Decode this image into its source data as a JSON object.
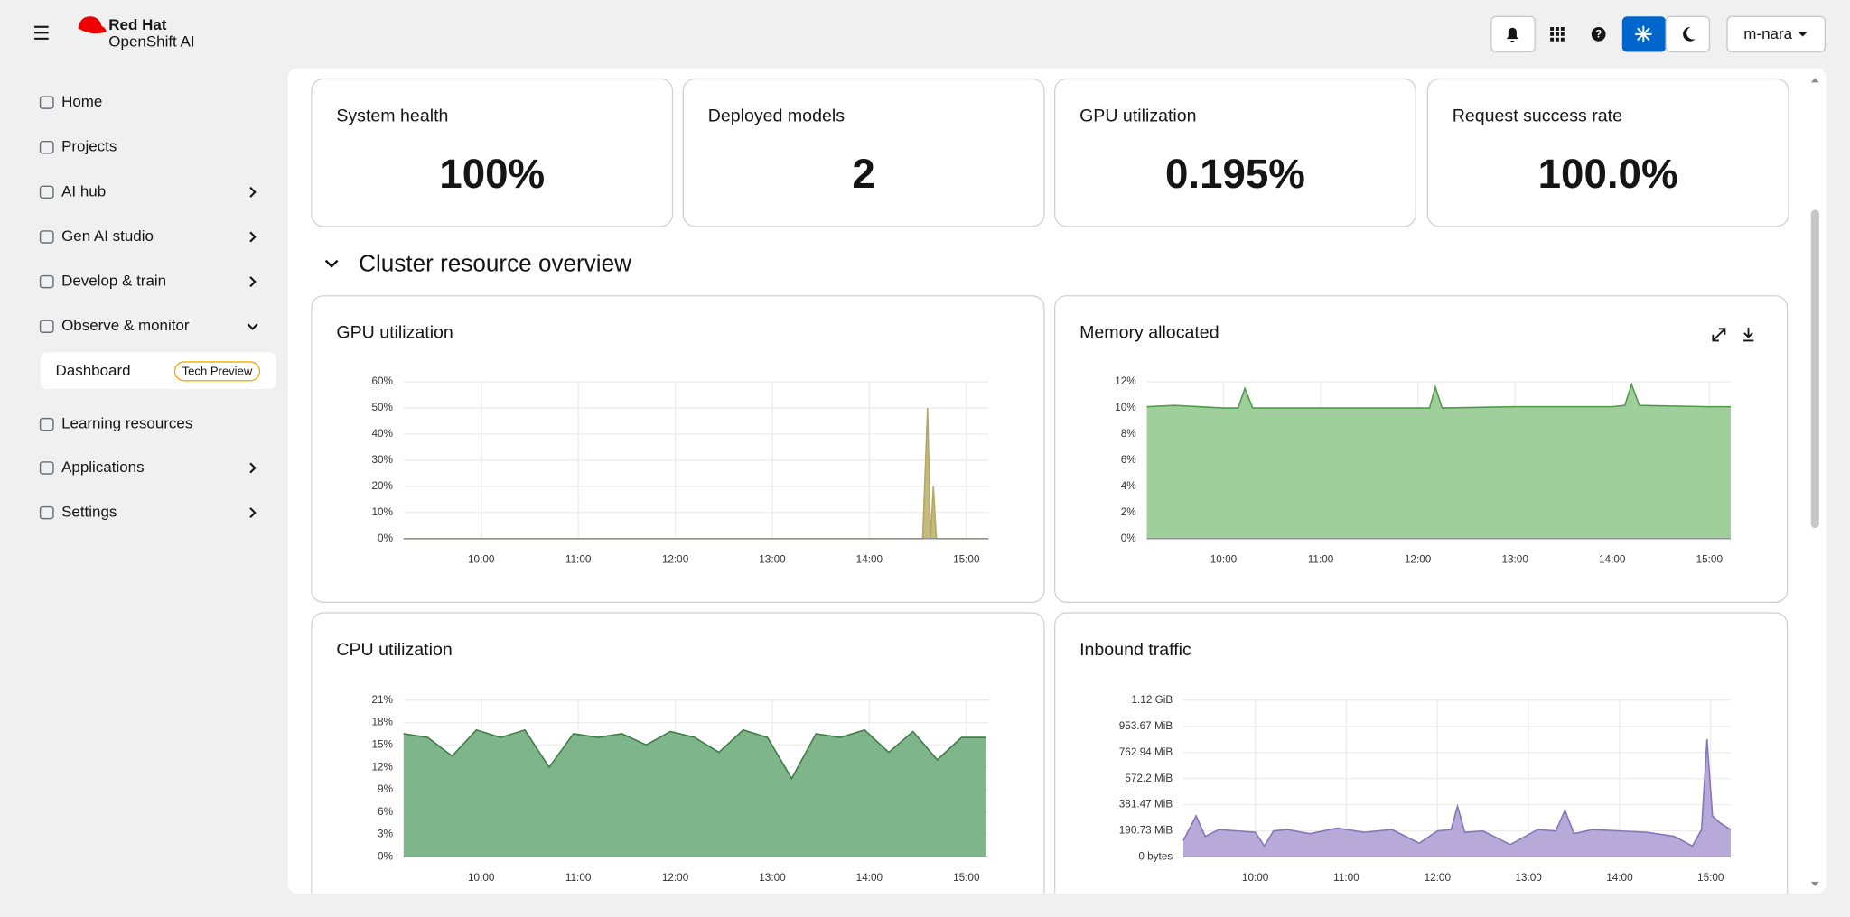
{
  "header": {
    "brand": "Red Hat",
    "product": "OpenShift AI",
    "user": "m-nara"
  },
  "nav": {
    "items": [
      "Home",
      "Projects",
      "AI hub",
      "Gen AI studio",
      "Develop & train",
      "Observe & monitor"
    ],
    "sub_item": "Dashboard",
    "badge": "Tech Preview",
    "items_after": [
      "Learning resources",
      "Applications",
      "Settings"
    ]
  },
  "stats": [
    {
      "title": "System health",
      "value": "100%"
    },
    {
      "title": "Deployed models",
      "value": "2"
    },
    {
      "title": "GPU utilization",
      "value": "0.195%"
    },
    {
      "title": "Request success rate",
      "value": "100.0%"
    }
  ],
  "section_title": "Cluster resource overview",
  "chart_data": [
    {
      "type": "area",
      "title": "GPU utilization",
      "color": "#c5bb7e",
      "line_color": "#b3a862",
      "x": [
        9.2,
        14.55,
        14.6,
        14.63,
        14.66,
        14.69,
        15.23
      ],
      "values": [
        0,
        0,
        50,
        0,
        20,
        0,
        0
      ],
      "xlim": [
        9.2,
        15.23
      ],
      "xticks": [
        {
          "value": 10,
          "label": "10:00"
        },
        {
          "value": 11,
          "label": "11:00"
        },
        {
          "value": 12,
          "label": "12:00"
        },
        {
          "value": 13,
          "label": "13:00"
        },
        {
          "value": 14,
          "label": "14:00"
        },
        {
          "value": 15,
          "label": "15:00"
        }
      ],
      "ylim": [
        0,
        60
      ],
      "yticks": [
        {
          "value": 0,
          "label": "0%"
        },
        {
          "value": 10,
          "label": "10%"
        },
        {
          "value": 20,
          "label": "20%"
        },
        {
          "value": 30,
          "label": "30%"
        },
        {
          "value": 40,
          "label": "40%"
        },
        {
          "value": 50,
          "label": "50%"
        },
        {
          "value": 60,
          "label": "60%"
        }
      ],
      "grid": true
    },
    {
      "type": "area",
      "title": "Memory allocated",
      "color": "#9fcf9b",
      "line_color": "#4f9a4a",
      "x": [
        9.21,
        9.5,
        10.0,
        10.15,
        10.22,
        10.3,
        11,
        12,
        12.12,
        12.18,
        12.25,
        13,
        14,
        14.13,
        14.2,
        14.28,
        15,
        15.22
      ],
      "values": [
        10.1,
        10.2,
        10,
        10,
        11.5,
        10,
        10,
        10,
        10,
        11.6,
        10,
        10.1,
        10.1,
        10.2,
        11.8,
        10.2,
        10.1,
        10.1
      ],
      "xlim": [
        9.21,
        15.22
      ],
      "xticks": [
        {
          "value": 10,
          "label": "10:00"
        },
        {
          "value": 11,
          "label": "11:00"
        },
        {
          "value": 12,
          "label": "12:00"
        },
        {
          "value": 13,
          "label": "13:00"
        },
        {
          "value": 14,
          "label": "14:00"
        },
        {
          "value": 15,
          "label": "15:00"
        }
      ],
      "ylim": [
        0,
        12
      ],
      "yticks": [
        {
          "value": 0,
          "label": "0%"
        },
        {
          "value": 2,
          "label": "2%"
        },
        {
          "value": 4,
          "label": "4%"
        },
        {
          "value": 6,
          "label": "6%"
        },
        {
          "value": 8,
          "label": "8%"
        },
        {
          "value": 10,
          "label": "10%"
        },
        {
          "value": 12,
          "label": "12%"
        }
      ],
      "grid": true
    },
    {
      "type": "area",
      "title": "CPU utilization",
      "color": "#7fb58a",
      "line_color": "#3e7b45",
      "x": [
        9.2,
        9.45,
        9.7,
        9.95,
        10.2,
        10.45,
        10.7,
        10.95,
        11.2,
        11.45,
        11.7,
        11.95,
        12.2,
        12.45,
        12.7,
        12.95,
        13.2,
        13.45,
        13.7,
        13.95,
        14.2,
        14.45,
        14.7,
        14.95,
        15.2
      ],
      "values": [
        16.5,
        16,
        13.5,
        17,
        16,
        17,
        12,
        16.5,
        16,
        16.5,
        15,
        16.8,
        16,
        14,
        17,
        16,
        10.5,
        16.5,
        16,
        17,
        14,
        16.8,
        13,
        16,
        16
      ],
      "xlim": [
        9.2,
        15.23
      ],
      "xticks": [
        {
          "value": 10,
          "label": "10:00"
        },
        {
          "value": 11,
          "label": "11:00"
        },
        {
          "value": 12,
          "label": "12:00"
        },
        {
          "value": 13,
          "label": "13:00"
        },
        {
          "value": 14,
          "label": "14:00"
        },
        {
          "value": 15,
          "label": "15:00"
        }
      ],
      "ylim": [
        0,
        21
      ],
      "yticks": [
        {
          "value": 0,
          "label": "0%"
        },
        {
          "value": 3,
          "label": "3%"
        },
        {
          "value": 6,
          "label": "6%"
        },
        {
          "value": 9,
          "label": "9%"
        },
        {
          "value": 12,
          "label": "12%"
        },
        {
          "value": 15,
          "label": "15%"
        },
        {
          "value": 18,
          "label": "18%"
        },
        {
          "value": 21,
          "label": "21%"
        }
      ],
      "grid": true
    },
    {
      "type": "area",
      "title": "Inbound traffic",
      "color": "#b7a9d8",
      "line_color": "#8475b8",
      "x": [
        9.21,
        9.35,
        9.45,
        9.6,
        9.8,
        10.0,
        10.1,
        10.2,
        10.35,
        10.6,
        10.9,
        11.2,
        11.5,
        11.8,
        12.0,
        12.15,
        12.22,
        12.3,
        12.5,
        12.8,
        13.1,
        13.3,
        13.4,
        13.5,
        13.7,
        14.0,
        14.3,
        14.6,
        14.8,
        14.9,
        14.96,
        15.02,
        15.1,
        15.22
      ],
      "values": [
        120,
        300,
        150,
        200,
        190,
        180,
        80,
        190,
        200,
        170,
        210,
        180,
        200,
        100,
        190,
        200,
        370,
        180,
        190,
        90,
        200,
        190,
        340,
        170,
        200,
        190,
        180,
        150,
        80,
        200,
        860,
        300,
        250,
        200
      ],
      "xlim": [
        9.21,
        15.22
      ],
      "xticks": [
        {
          "value": 10,
          "label": "10:00"
        },
        {
          "value": 11,
          "label": "11:00"
        },
        {
          "value": 12,
          "label": "12:00"
        },
        {
          "value": 13,
          "label": "13:00"
        },
        {
          "value": 14,
          "label": "14:00"
        },
        {
          "value": 15,
          "label": "15:00"
        }
      ],
      "ylim": [
        0,
        1146.88
      ],
      "yticks": [
        {
          "value": 0,
          "label": "0 bytes"
        },
        {
          "value": 190.73,
          "label": "190.73 MiB"
        },
        {
          "value": 381.47,
          "label": "381.47 MiB"
        },
        {
          "value": 572.2,
          "label": "572.2 MiB"
        },
        {
          "value": 762.94,
          "label": "762.94 MiB"
        },
        {
          "value": 953.67,
          "label": "953.67 MiB"
        },
        {
          "value": 1146.88,
          "label": "1.12 GiB"
        }
      ],
      "grid": true
    }
  ]
}
